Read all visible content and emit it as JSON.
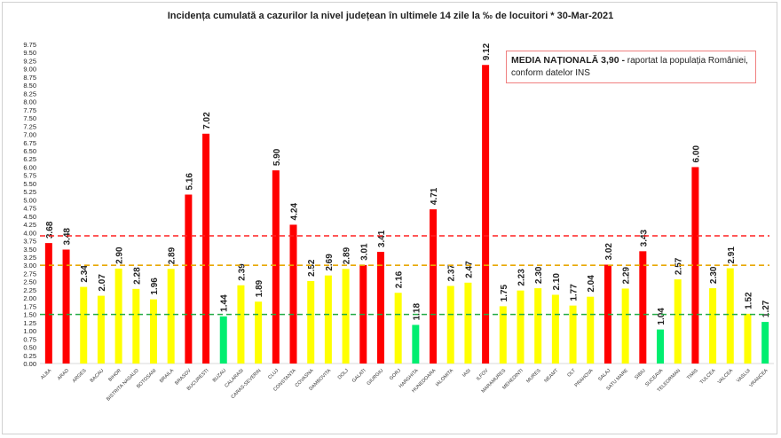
{
  "chart_data": {
    "type": "bar",
    "title": "Incidența cumulată a cazurilor la nivel județean în ultimele 14 zile la ‰ de locuitori * 30-Mar-2021",
    "categories": [
      "ALBA",
      "ARAD",
      "ARGES",
      "BACAU",
      "BIHOR",
      "BISTRITA NASAUD",
      "BOTOSANI",
      "BRAILA",
      "BRASOV",
      "BUCURESTI",
      "BUZAU",
      "CALARASI",
      "CARAS-SEVERIN",
      "CLUJ",
      "CONSTANTA",
      "COVASNA",
      "DAMBOVITA",
      "DOLJ",
      "GALATI",
      "GIURGIU",
      "GORJ",
      "HARGHITA",
      "HUNEDOARA",
      "IALOMITA",
      "IASI",
      "ILFOV",
      "MARAMURES",
      "MEHEDINTI",
      "MURES",
      "NEAMT",
      "OLT",
      "PRAHOVA",
      "SALAJ",
      "SATU MARE",
      "SIBIU",
      "SUCEAVA",
      "TELEORMAN",
      "TIMIS",
      "TULCEA",
      "VALCEA",
      "VASLUI",
      "VRANCEA"
    ],
    "values": [
      3.68,
      3.48,
      2.34,
      2.07,
      2.9,
      2.28,
      1.96,
      2.89,
      5.16,
      7.02,
      1.44,
      2.39,
      1.89,
      5.9,
      4.24,
      2.52,
      2.69,
      2.89,
      3.01,
      3.41,
      2.16,
      1.18,
      4.71,
      2.37,
      2.47,
      9.12,
      1.75,
      2.23,
      2.3,
      2.1,
      1.77,
      2.04,
      3.02,
      2.29,
      3.43,
      1.04,
      2.57,
      6.0,
      2.3,
      2.91,
      1.52,
      1.27
    ],
    "ylim": [
      0,
      9.75
    ],
    "ytick_step": 0.25,
    "thresholds": {
      "red": 3.0,
      "yellow": 1.5
    },
    "reference_lines": [
      {
        "value": 3.9,
        "color": "#ff2020"
      },
      {
        "value": 3.0,
        "color": "#e8a800"
      },
      {
        "value": 1.5,
        "color": "#22aa44"
      }
    ],
    "colors": {
      "red": "#ff0000",
      "yellow": "#ffff00",
      "green": "#00ee70"
    },
    "annotation": {
      "bold": "MEDIA NAȚIONALĂ  3,90 -",
      "text": " raportat la populația României, conform datelor INS"
    }
  }
}
